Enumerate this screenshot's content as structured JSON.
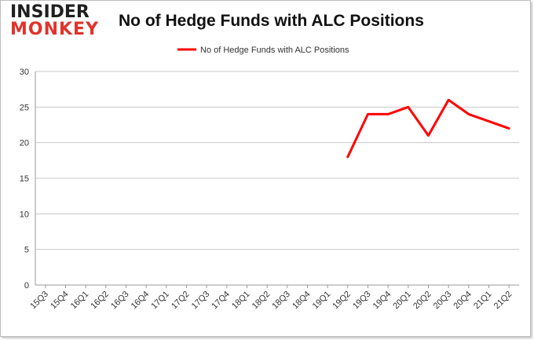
{
  "logo": {
    "top": "INSIDER",
    "bottom": "MONKEY"
  },
  "chart_data": {
    "type": "line",
    "title": "No of Hedge Funds with ALC Positions",
    "xlabel": "",
    "ylabel": "",
    "categories": [
      "15Q3",
      "15Q4",
      "16Q1",
      "16Q2",
      "16Q3",
      "16Q4",
      "17Q1",
      "17Q2",
      "17Q3",
      "17Q4",
      "18Q1",
      "18Q2",
      "18Q3",
      "18Q4",
      "19Q1",
      "19Q2",
      "19Q3",
      "19Q4",
      "20Q1",
      "20Q2",
      "20Q3",
      "20Q4",
      "21Q1",
      "21Q2"
    ],
    "series": [
      {
        "name": "No of Hedge Funds with ALC Positions",
        "color": "#ff0000",
        "values": [
          null,
          null,
          null,
          null,
          null,
          null,
          null,
          null,
          null,
          null,
          null,
          null,
          null,
          null,
          null,
          18,
          24,
          24,
          25,
          21,
          26,
          24,
          23,
          22
        ]
      }
    ],
    "ylim": [
      0,
      30
    ],
    "yticks": [
      0,
      5,
      10,
      15,
      20,
      25,
      30
    ],
    "grid": true,
    "legend": "top-center",
    "colors": {
      "grid": "#c8c8c8",
      "axis": "#9a9a9a",
      "logo_dark": "#1f1f1f",
      "logo_red": "#e0332b"
    }
  }
}
